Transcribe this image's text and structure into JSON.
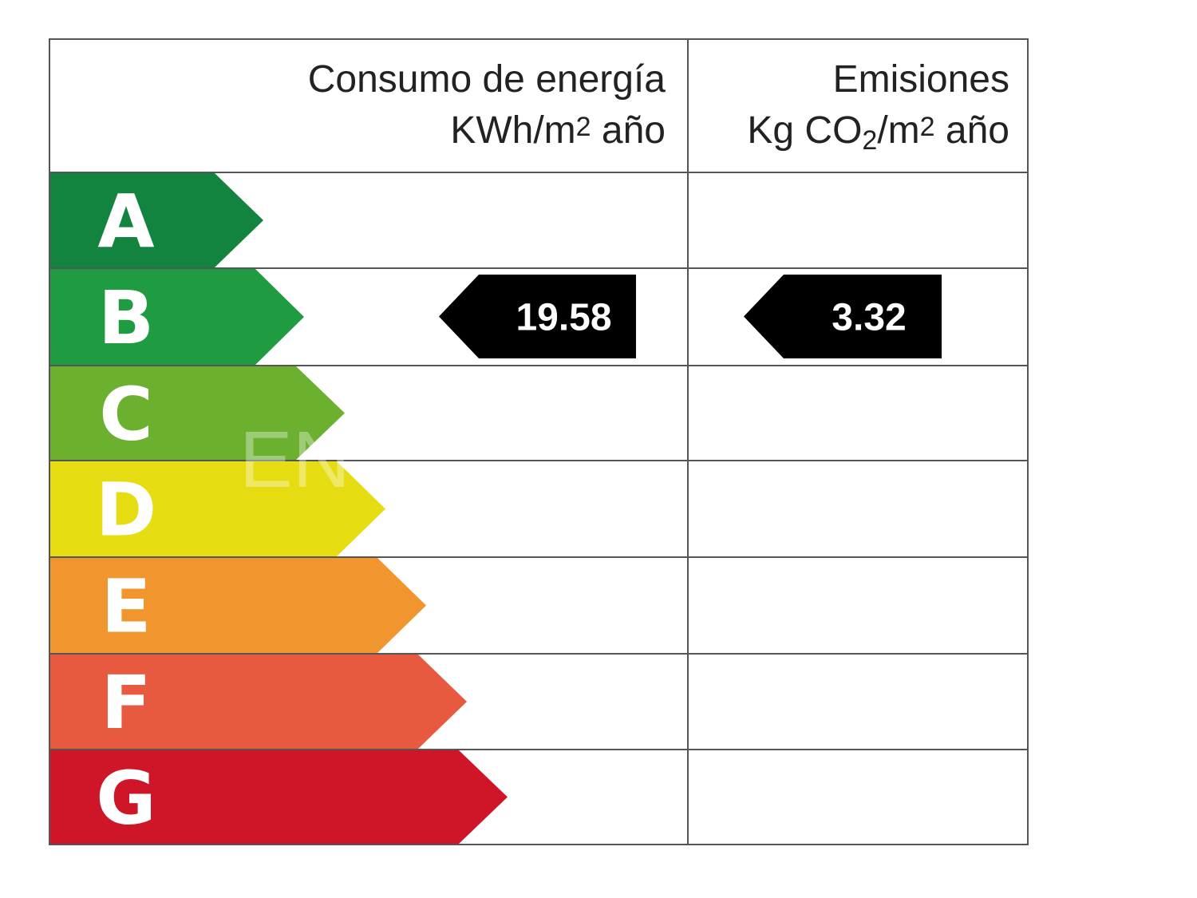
{
  "headers": {
    "energy": {
      "line1": "Consumo de energía",
      "unit_pre": "KWh/m",
      "unit_sup": "2",
      "unit_post": " año"
    },
    "emissions": {
      "line1": "Emisiones",
      "unit_pre": "Kg CO",
      "unit_sub": "2",
      "unit_mid": "/m",
      "unit_sup": "2",
      "unit_post": " año"
    }
  },
  "classes": [
    {
      "letter": "A",
      "color": "#13843f"
    },
    {
      "letter": "B",
      "color": "#1f9c41"
    },
    {
      "letter": "C",
      "color": "#6bb02f"
    },
    {
      "letter": "D",
      "color": "#e6dc12"
    },
    {
      "letter": "E",
      "color": "#f1962f"
    },
    {
      "letter": "F",
      "color": "#e75a40"
    },
    {
      "letter": "G",
      "color": "#cf1528"
    }
  ],
  "ratings": {
    "energy": {
      "class": "B",
      "value": "19.58"
    },
    "emissions": {
      "class": "B",
      "value": "3.32"
    }
  },
  "watermark": "EN"
}
